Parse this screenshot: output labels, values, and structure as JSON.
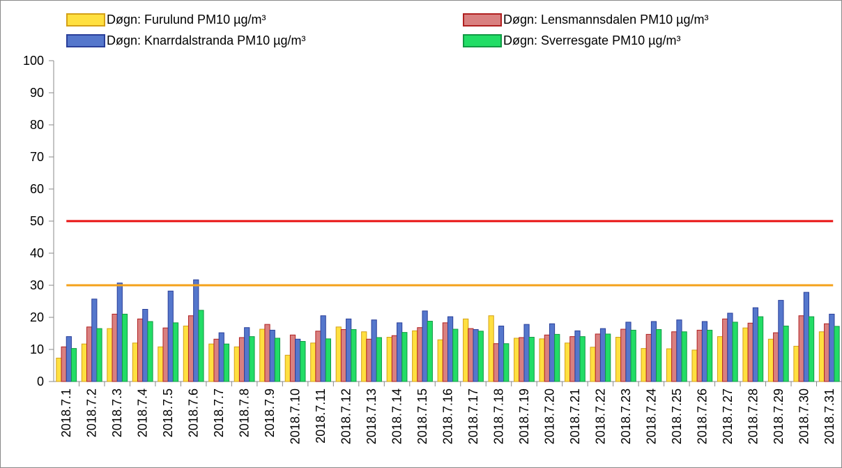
{
  "chart_data": {
    "type": "bar",
    "categories": [
      "2018.7.1",
      "2018.7.2",
      "2018.7.3",
      "2018.7.4",
      "2018.7.5",
      "2018.7.6",
      "2018.7.7",
      "2018.7.8",
      "2018.7.9",
      "2018.7.10",
      "2018.7.11",
      "2018.7.12",
      "2018.7.13",
      "2018.7.14",
      "2018.7.15",
      "2018.7.16",
      "2018.7.17",
      "2018.7.18",
      "2018.7.19",
      "2018.7.20",
      "2018.7.21",
      "2018.7.22",
      "2018.7.23",
      "2018.7.24",
      "2018.7.25",
      "2018.7.26",
      "2018.7.27",
      "2018.7.28",
      "2018.7.29",
      "2018.7.30",
      "2018.7.31"
    ],
    "series": [
      {
        "name": "Døgn: Furulund  PM10  µg/m³",
        "color": "#ffe040",
        "stroke": "#d4a017",
        "values": [
          7.3,
          11.7,
          16.5,
          12,
          10.8,
          17.3,
          11.7,
          10.8,
          16.3,
          8.2,
          12,
          17,
          15.5,
          13.8,
          15.8,
          13,
          19.5,
          20.5,
          13.5,
          13.3,
          12,
          10.7,
          13.8,
          10.3,
          10.2,
          9.8,
          14,
          16.7,
          13.2,
          11,
          15.5
        ]
      },
      {
        "name": "Døgn: Lensmannsdalen  PM10  µg/m³",
        "color": "#d98080",
        "stroke": "#b02020",
        "values": [
          10.8,
          17,
          21,
          19.5,
          16.7,
          20.5,
          13.2,
          13.7,
          17.8,
          14.5,
          15.7,
          16.2,
          13.2,
          14.3,
          16.8,
          18.3,
          16.5,
          11.8,
          13.7,
          14.5,
          14,
          14.8,
          16.3,
          14.7,
          15.5,
          16,
          19.5,
          18.2,
          15.2,
          20.5,
          18
        ]
      },
      {
        "name": "Døgn: Knarrdalstranda  PM10  µg/m³",
        "color": "#5577cc",
        "stroke": "#2a3f9a",
        "values": [
          14,
          25.7,
          30.7,
          22.5,
          28.2,
          31.7,
          15.2,
          16.8,
          16,
          13.2,
          20.5,
          19.5,
          19.2,
          18.3,
          22,
          20.2,
          16.2,
          17.3,
          17.8,
          18,
          15.8,
          16.5,
          18.5,
          18.7,
          19.2,
          18.7,
          21.3,
          23,
          25.3,
          27.8,
          21
        ]
      },
      {
        "name": "Døgn: Sverresgate   PM10  µg/m³",
        "color": "#22dd66",
        "stroke": "#119944",
        "values": [
          10.3,
          16.5,
          21,
          18.7,
          18.3,
          22.2,
          11.7,
          14,
          13.5,
          12.5,
          13.3,
          16.2,
          13.7,
          15.3,
          18.8,
          16.3,
          15.7,
          11.8,
          13.8,
          14.7,
          14,
          14.8,
          16,
          16.2,
          15.5,
          16,
          18.5,
          20.2,
          17.3,
          20.2,
          17.2
        ]
      }
    ],
    "reference_lines": [
      {
        "value": 50,
        "color": "#e81010"
      },
      {
        "value": 30,
        "color": "#f4a21b"
      }
    ],
    "ylim": [
      0,
      100
    ],
    "yticks": [
      0,
      10,
      20,
      30,
      40,
      50,
      60,
      70,
      80,
      90,
      100
    ],
    "grid": false
  }
}
